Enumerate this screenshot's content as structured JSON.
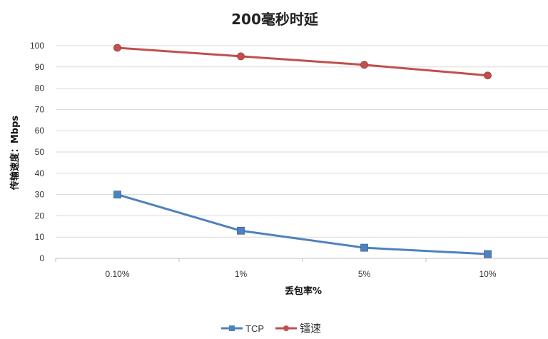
{
  "chart_data": {
    "type": "line",
    "title": "200毫秒时延",
    "xlabel": "丢包率%",
    "ylabel": "传输速度：Mbps",
    "categories": [
      "0.10%",
      "1%",
      "5%",
      "10%"
    ],
    "ylim": [
      0,
      100
    ],
    "yticks": [
      0,
      10,
      20,
      30,
      40,
      50,
      60,
      70,
      80,
      90,
      100
    ],
    "grid": true,
    "legend_position": "bottom",
    "series": [
      {
        "name": "TCP",
        "values": [
          30,
          13,
          5,
          2
        ],
        "color": "#4f81bd",
        "marker": "square"
      },
      {
        "name": "镭速",
        "values": [
          99,
          95,
          91,
          86
        ],
        "color": "#c0504d",
        "marker": "circle"
      }
    ]
  }
}
